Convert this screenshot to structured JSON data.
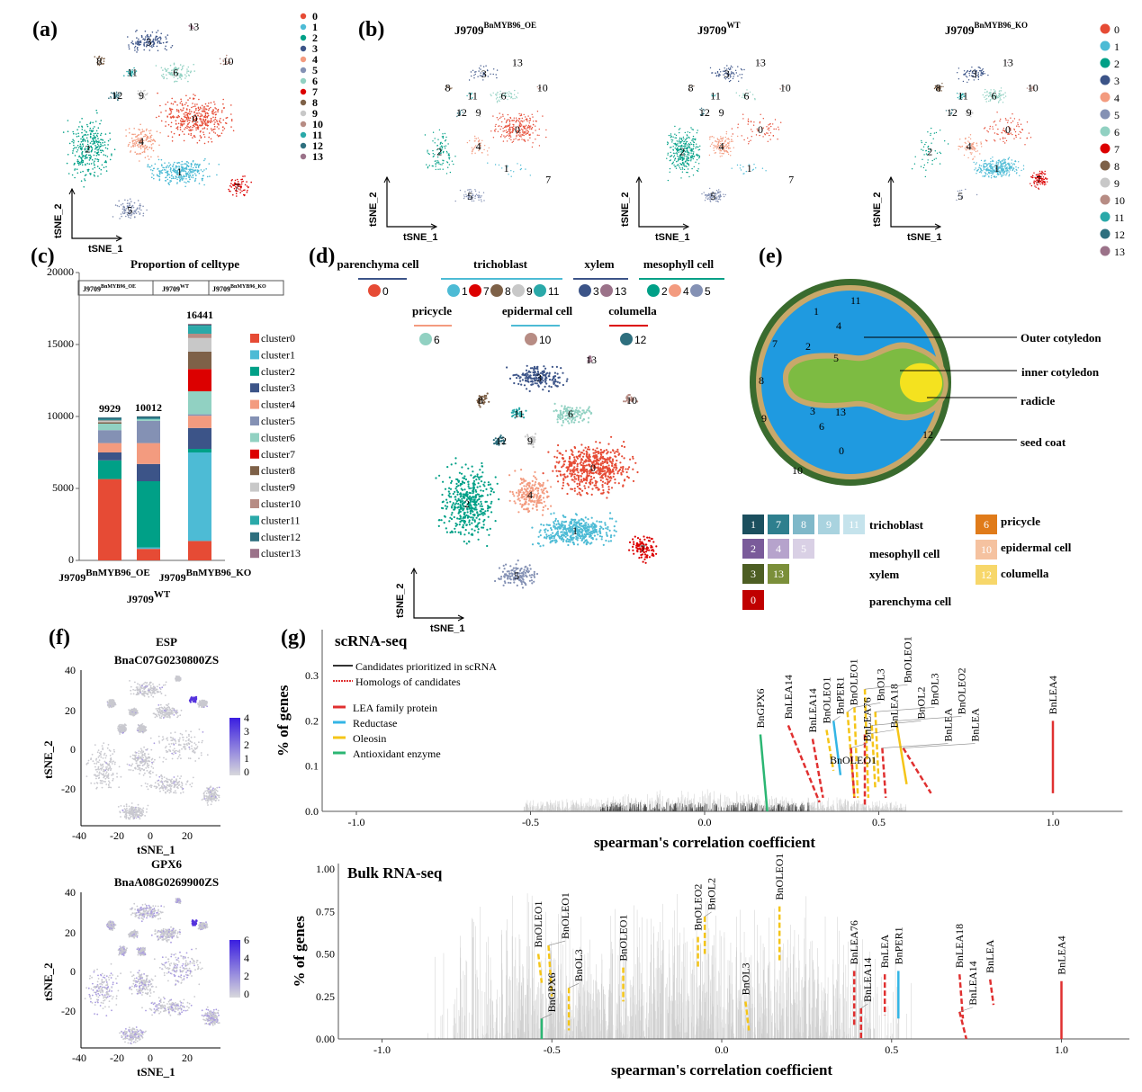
{
  "panel_labels": {
    "a": "(a)",
    "b": "(b)",
    "c": "(c)",
    "d": "(d)",
    "e": "(e)",
    "f": "(f)",
    "g": "(g)"
  },
  "clusters": [
    {
      "id": "0",
      "color": "#e64b35"
    },
    {
      "id": "1",
      "color": "#4dbbd5"
    },
    {
      "id": "2",
      "color": "#00a087"
    },
    {
      "id": "3",
      "color": "#3c5488"
    },
    {
      "id": "4",
      "color": "#f39b7f"
    },
    {
      "id": "5",
      "color": "#8491b4"
    },
    {
      "id": "6",
      "color": "#91d1c2"
    },
    {
      "id": "7",
      "color": "#dc0000"
    },
    {
      "id": "8",
      "color": "#7e6148"
    },
    {
      "id": "9",
      "color": "#c8c8c8"
    },
    {
      "id": "10",
      "color": "#b78c84"
    },
    {
      "id": "11",
      "color": "#2aa9a9"
    },
    {
      "id": "12",
      "color": "#2e6f7e"
    },
    {
      "id": "13",
      "color": "#9b7289"
    }
  ],
  "tsne_axes": {
    "x": "tSNE_1",
    "y": "tSNE_2"
  },
  "samples": [
    {
      "base": "J9709",
      "sup": "BnMYB96_OE"
    },
    {
      "base": "J9709",
      "sup": "WT"
    },
    {
      "base": "J9709",
      "sup": "BnMYB96_KO"
    }
  ],
  "chart_data": [
    {
      "type": "bar",
      "stacked": true,
      "title": "Proportion of celltype",
      "categories": [
        "J9709 BnMYB96_OE",
        "J9709 WT",
        "J9709 BnMYB96_KO"
      ],
      "totals": [
        "9929",
        "10012",
        "16441"
      ],
      "ylim": [
        0,
        20000
      ],
      "yticks": [
        "0",
        "5000",
        "10000",
        "15000",
        "20000"
      ],
      "legend_placement": "right",
      "series": [
        {
          "name": "cluster0",
          "values": [
            5650,
            800,
            1350
          ]
        },
        {
          "name": "cluster1",
          "values": [
            0,
            100,
            6150
          ]
        },
        {
          "name": "cluster2",
          "values": [
            1300,
            4600,
            250
          ]
        },
        {
          "name": "cluster3",
          "values": [
            550,
            1200,
            1450
          ]
        },
        {
          "name": "cluster4",
          "values": [
            650,
            1450,
            850
          ]
        },
        {
          "name": "cluster5",
          "values": [
            900,
            1550,
            100
          ]
        },
        {
          "name": "cluster6",
          "values": [
            450,
            100,
            1600
          ]
        },
        {
          "name": "cluster7",
          "values": [
            0,
            0,
            1550
          ]
        },
        {
          "name": "cluster8",
          "values": [
            100,
            0,
            1200
          ]
        },
        {
          "name": "cluster9",
          "values": [
            80,
            0,
            950
          ]
        },
        {
          "name": "cluster10",
          "values": [
            50,
            0,
            300
          ]
        },
        {
          "name": "cluster11",
          "values": [
            50,
            50,
            550
          ]
        },
        {
          "name": "cluster12",
          "values": [
            149,
            150,
            80
          ]
        },
        {
          "name": "cluster13",
          "values": [
            0,
            12,
            61
          ]
        }
      ]
    },
    {
      "type": "line",
      "title": "scRNA-seq",
      "xlabel": "spearman's correlation coefficient",
      "ylabel": "% of genes",
      "xlim": [
        -1.1,
        1.2
      ],
      "ylim": [
        0,
        0.35
      ],
      "xticks": [
        "-1.0",
        "-0.5",
        "0.0",
        "0.5",
        "1.0"
      ],
      "yticks": [
        "0.0",
        "0.1",
        "0.2",
        "0.3"
      ],
      "legend": [
        "Candidates prioritized in scRNA",
        "Homologs of candidates",
        "LEA family protein",
        "Reductase",
        "Oleosin",
        "Antioxidant enzyme"
      ],
      "genes": [
        {
          "name": "BnGPX6",
          "cat": "antioxidant",
          "x0": 0.16,
          "x1": 0.18,
          "ymin": 0.0,
          "ymax": 0.17,
          "dash": false
        },
        {
          "name": "BnLEA14",
          "cat": "lea",
          "x0": 0.24,
          "x1": 0.33,
          "ymin": 0.02,
          "ymax": 0.19,
          "dash": true
        },
        {
          "name": "BnLEA14",
          "cat": "lea",
          "x0": 0.31,
          "x1": 0.34,
          "ymin": 0.03,
          "ymax": 0.16,
          "dash": true
        },
        {
          "name": "BnOLEO1",
          "cat": "oleosin",
          "x0": 0.35,
          "x1": 0.37,
          "ymin": 0.09,
          "ymax": 0.18,
          "dash": true
        },
        {
          "name": "BnPER1",
          "cat": "reductase",
          "x0": 0.37,
          "x1": 0.39,
          "ymin": 0.08,
          "ymax": 0.2,
          "dash": false
        },
        {
          "name": "BnOLEO1",
          "cat": "oleosin",
          "x0": 0.41,
          "x1": 0.43,
          "ymin": 0.03,
          "ymax": 0.22,
          "dash": true
        },
        {
          "name": "BnOL3",
          "cat": "oleosin",
          "x0": 0.43,
          "x1": 0.44,
          "ymin": 0.03,
          "ymax": 0.23,
          "dash": true
        },
        {
          "name": "BnLEA76",
          "cat": "lea",
          "x0": 0.42,
          "x1": 0.43,
          "ymin": 0.03,
          "ymax": 0.14,
          "dash": true
        },
        {
          "name": "BnLEA18",
          "cat": "lea",
          "x0": 0.46,
          "x1": 0.46,
          "ymin": 0.01,
          "ymax": 0.17,
          "dash": true
        },
        {
          "name": "BnOLEO1",
          "cat": "oleosin",
          "x0": 0.46,
          "x1": 0.47,
          "ymin": 0.03,
          "ymax": 0.27,
          "dash": true
        },
        {
          "name": "BnOL2",
          "cat": "oleosin",
          "x0": 0.48,
          "x1": 0.49,
          "ymin": 0.05,
          "ymax": 0.19,
          "dash": true
        },
        {
          "name": "BnOL3",
          "cat": "oleosin",
          "x0": 0.49,
          "x1": 0.5,
          "ymin": 0.06,
          "ymax": 0.22,
          "dash": true
        },
        {
          "name": "BnLEA",
          "cat": "lea",
          "x0": 0.51,
          "x1": 0.52,
          "ymin": 0.03,
          "ymax": 0.14,
          "dash": true
        },
        {
          "name": "BnOLEO2",
          "cat": "oleosin",
          "x0": 0.55,
          "x1": 0.58,
          "ymin": 0.06,
          "ymax": 0.2,
          "dash": false
        },
        {
          "name": "BnLEA",
          "cat": "lea",
          "x0": 0.57,
          "x1": 0.65,
          "ymin": 0.04,
          "ymax": 0.14,
          "dash": true
        },
        {
          "name": "BnLEA4",
          "cat": "lea",
          "x0": 1.0,
          "x1": 1.0,
          "ymin": 0.04,
          "ymax": 0.2,
          "dash": false
        }
      ],
      "extra_labels": [
        "BnOLEO1"
      ]
    },
    {
      "type": "line",
      "title": "Bulk RNA-seq",
      "xlabel": "spearman's correlation coefficient",
      "ylabel": "% of genes",
      "xlim": [
        -1.1,
        1.2
      ],
      "ylim": [
        0,
        1.0
      ],
      "xticks": [
        "-1.0",
        "-0.5",
        "0.0",
        "0.5",
        "1.0"
      ],
      "yticks": [
        "0.00",
        "0.25",
        "0.50",
        "0.75",
        "1.00"
      ],
      "genes": [
        {
          "name": "BnGPX6",
          "cat": "antioxidant",
          "x0": -0.53,
          "x1": -0.53,
          "ymin": 0.0,
          "ymax": 0.12,
          "dash": false
        },
        {
          "name": "BnOLEO1",
          "cat": "oleosin",
          "x0": -0.54,
          "x1": -0.53,
          "ymin": 0.33,
          "ymax": 0.5,
          "dash": true
        },
        {
          "name": "BnOLEO1",
          "cat": "oleosin",
          "x0": -0.51,
          "x1": -0.5,
          "ymin": 0.25,
          "ymax": 0.55,
          "dash": true
        },
        {
          "name": "BnOL3",
          "cat": "oleosin",
          "x0": -0.45,
          "x1": -0.45,
          "ymin": 0.05,
          "ymax": 0.3,
          "dash": true
        },
        {
          "name": "BnOLEO1",
          "cat": "oleosin",
          "x0": -0.29,
          "x1": -0.29,
          "ymin": 0.22,
          "ymax": 0.42,
          "dash": true
        },
        {
          "name": "BnOLEO2",
          "cat": "oleosin",
          "x0": -0.07,
          "x1": -0.07,
          "ymin": 0.42,
          "ymax": 0.6,
          "dash": true
        },
        {
          "name": "BnOL2",
          "cat": "oleosin",
          "x0": -0.05,
          "x1": -0.05,
          "ymin": 0.5,
          "ymax": 0.72,
          "dash": true
        },
        {
          "name": "BnOL3",
          "cat": "oleosin",
          "x0": 0.07,
          "x1": 0.08,
          "ymin": 0.05,
          "ymax": 0.22,
          "dash": true
        },
        {
          "name": "BnOLEO1",
          "cat": "oleosin",
          "x0": 0.17,
          "x1": 0.17,
          "ymin": 0.45,
          "ymax": 0.78,
          "dash": true
        },
        {
          "name": "BnLEA76",
          "cat": "lea",
          "x0": 0.39,
          "x1": 0.39,
          "ymin": 0.07,
          "ymax": 0.4,
          "dash": true
        },
        {
          "name": "BnLEA14",
          "cat": "lea",
          "x0": 0.41,
          "x1": 0.41,
          "ymin": 0.0,
          "ymax": 0.18,
          "dash": true
        },
        {
          "name": "BnLEA",
          "cat": "lea",
          "x0": 0.48,
          "x1": 0.48,
          "ymin": 0.14,
          "ymax": 0.38,
          "dash": true
        },
        {
          "name": "BnPER1",
          "cat": "reductase",
          "x0": 0.52,
          "x1": 0.52,
          "ymin": 0.12,
          "ymax": 0.4,
          "dash": false
        },
        {
          "name": "BnLEA18",
          "cat": "lea",
          "x0": 0.7,
          "x1": 0.71,
          "ymin": 0.12,
          "ymax": 0.38,
          "dash": true
        },
        {
          "name": "BnLEA14",
          "cat": "lea",
          "x0": 0.7,
          "x1": 0.72,
          "ymin": 0.0,
          "ymax": 0.16,
          "dash": true
        },
        {
          "name": "BnLEA",
          "cat": "lea",
          "x0": 0.79,
          "x1": 0.8,
          "ymin": 0.2,
          "ymax": 0.35,
          "dash": true
        },
        {
          "name": "BnLEA4",
          "cat": "lea",
          "x0": 1.0,
          "x1": 1.0,
          "ymin": 0.0,
          "ymax": 0.34,
          "dash": false
        }
      ]
    }
  ],
  "category_colors": {
    "lea": "#e03030",
    "reductase": "#33b5e5",
    "oleosin": "#f5c518",
    "antioxidant": "#2bb673",
    "candidate": "#333333"
  },
  "celltypes_d": [
    {
      "name": "parenchyma cell",
      "line": "#3c5488",
      "ids": [
        "0"
      ]
    },
    {
      "name": "trichoblast",
      "line": "#4dbbd5",
      "ids": [
        "1",
        "7",
        "8",
        "9",
        "11"
      ]
    },
    {
      "name": "xylem",
      "line": "#3c5488",
      "ids": [
        "3",
        "13"
      ]
    },
    {
      "name": "mesophyll cell",
      "line": "#00a087",
      "ids": [
        "2",
        "4",
        "5"
      ]
    },
    {
      "name": "pricycle",
      "line": "#f39b7f",
      "ids": [
        "6"
      ]
    },
    {
      "name": "epidermal cell",
      "line": "#4dbbd5",
      "ids": [
        "10"
      ]
    },
    {
      "name": "columella",
      "line": "#dc0000",
      "ids": [
        "12"
      ]
    }
  ],
  "seed": {
    "labels": [
      "Outer cotyledon",
      "inner cotyledon",
      "radicle",
      "seed coat"
    ],
    "numbers": [
      "1",
      "4",
      "11",
      "7",
      "2",
      "5",
      "8",
      "3",
      "13",
      "6",
      "9",
      "0",
      "12",
      "10"
    ],
    "legend": [
      {
        "name": "trichoblast",
        "boxes": [
          {
            "id": "1",
            "color": "#1b4f5e"
          },
          {
            "id": "7",
            "color": "#2e7f8e"
          },
          {
            "id": "8",
            "color": "#7fb8c9"
          },
          {
            "id": "9",
            "color": "#a9d3df"
          },
          {
            "id": "11",
            "color": "#c5e3ec"
          }
        ]
      },
      {
        "name": "mesophyll cell",
        "boxes": [
          {
            "id": "2",
            "color": "#7a5b9a"
          },
          {
            "id": "4",
            "color": "#b6a3cc"
          },
          {
            "id": "5",
            "color": "#d9d0e5"
          }
        ]
      },
      {
        "name": "xylem",
        "boxes": [
          {
            "id": "3",
            "color": "#4d5e23"
          },
          {
            "id": "13",
            "color": "#7b8f3a"
          }
        ]
      },
      {
        "name": "parenchyma cell",
        "boxes": [
          {
            "id": "0",
            "color": "#c00000"
          }
        ]
      },
      {
        "name": "pricycle",
        "boxes": [
          {
            "id": "6",
            "color": "#e07b1a"
          }
        ]
      },
      {
        "name": "epidermal cell",
        "boxes": [
          {
            "id": "10",
            "color": "#f5c2a0"
          }
        ]
      },
      {
        "name": "columella",
        "boxes": [
          {
            "id": "12",
            "color": "#f7d76a"
          }
        ]
      }
    ]
  },
  "feature_plots": [
    {
      "gene": "ESP",
      "id": "BnaC07G0230800ZS",
      "yticks": [
        "40",
        "20",
        "0",
        "-20"
      ],
      "xticks": [
        "-40",
        "-20",
        "0",
        "20"
      ],
      "scale": [
        "4",
        "3",
        "2",
        "1",
        "0"
      ]
    },
    {
      "gene": "GPX6",
      "id": "BnaA08G0269900ZS",
      "yticks": [
        "40",
        "20",
        "0",
        "-20"
      ],
      "xticks": [
        "-40",
        "-20",
        "0",
        "20"
      ],
      "scale": [
        "6",
        "4",
        "2",
        "0"
      ]
    }
  ]
}
